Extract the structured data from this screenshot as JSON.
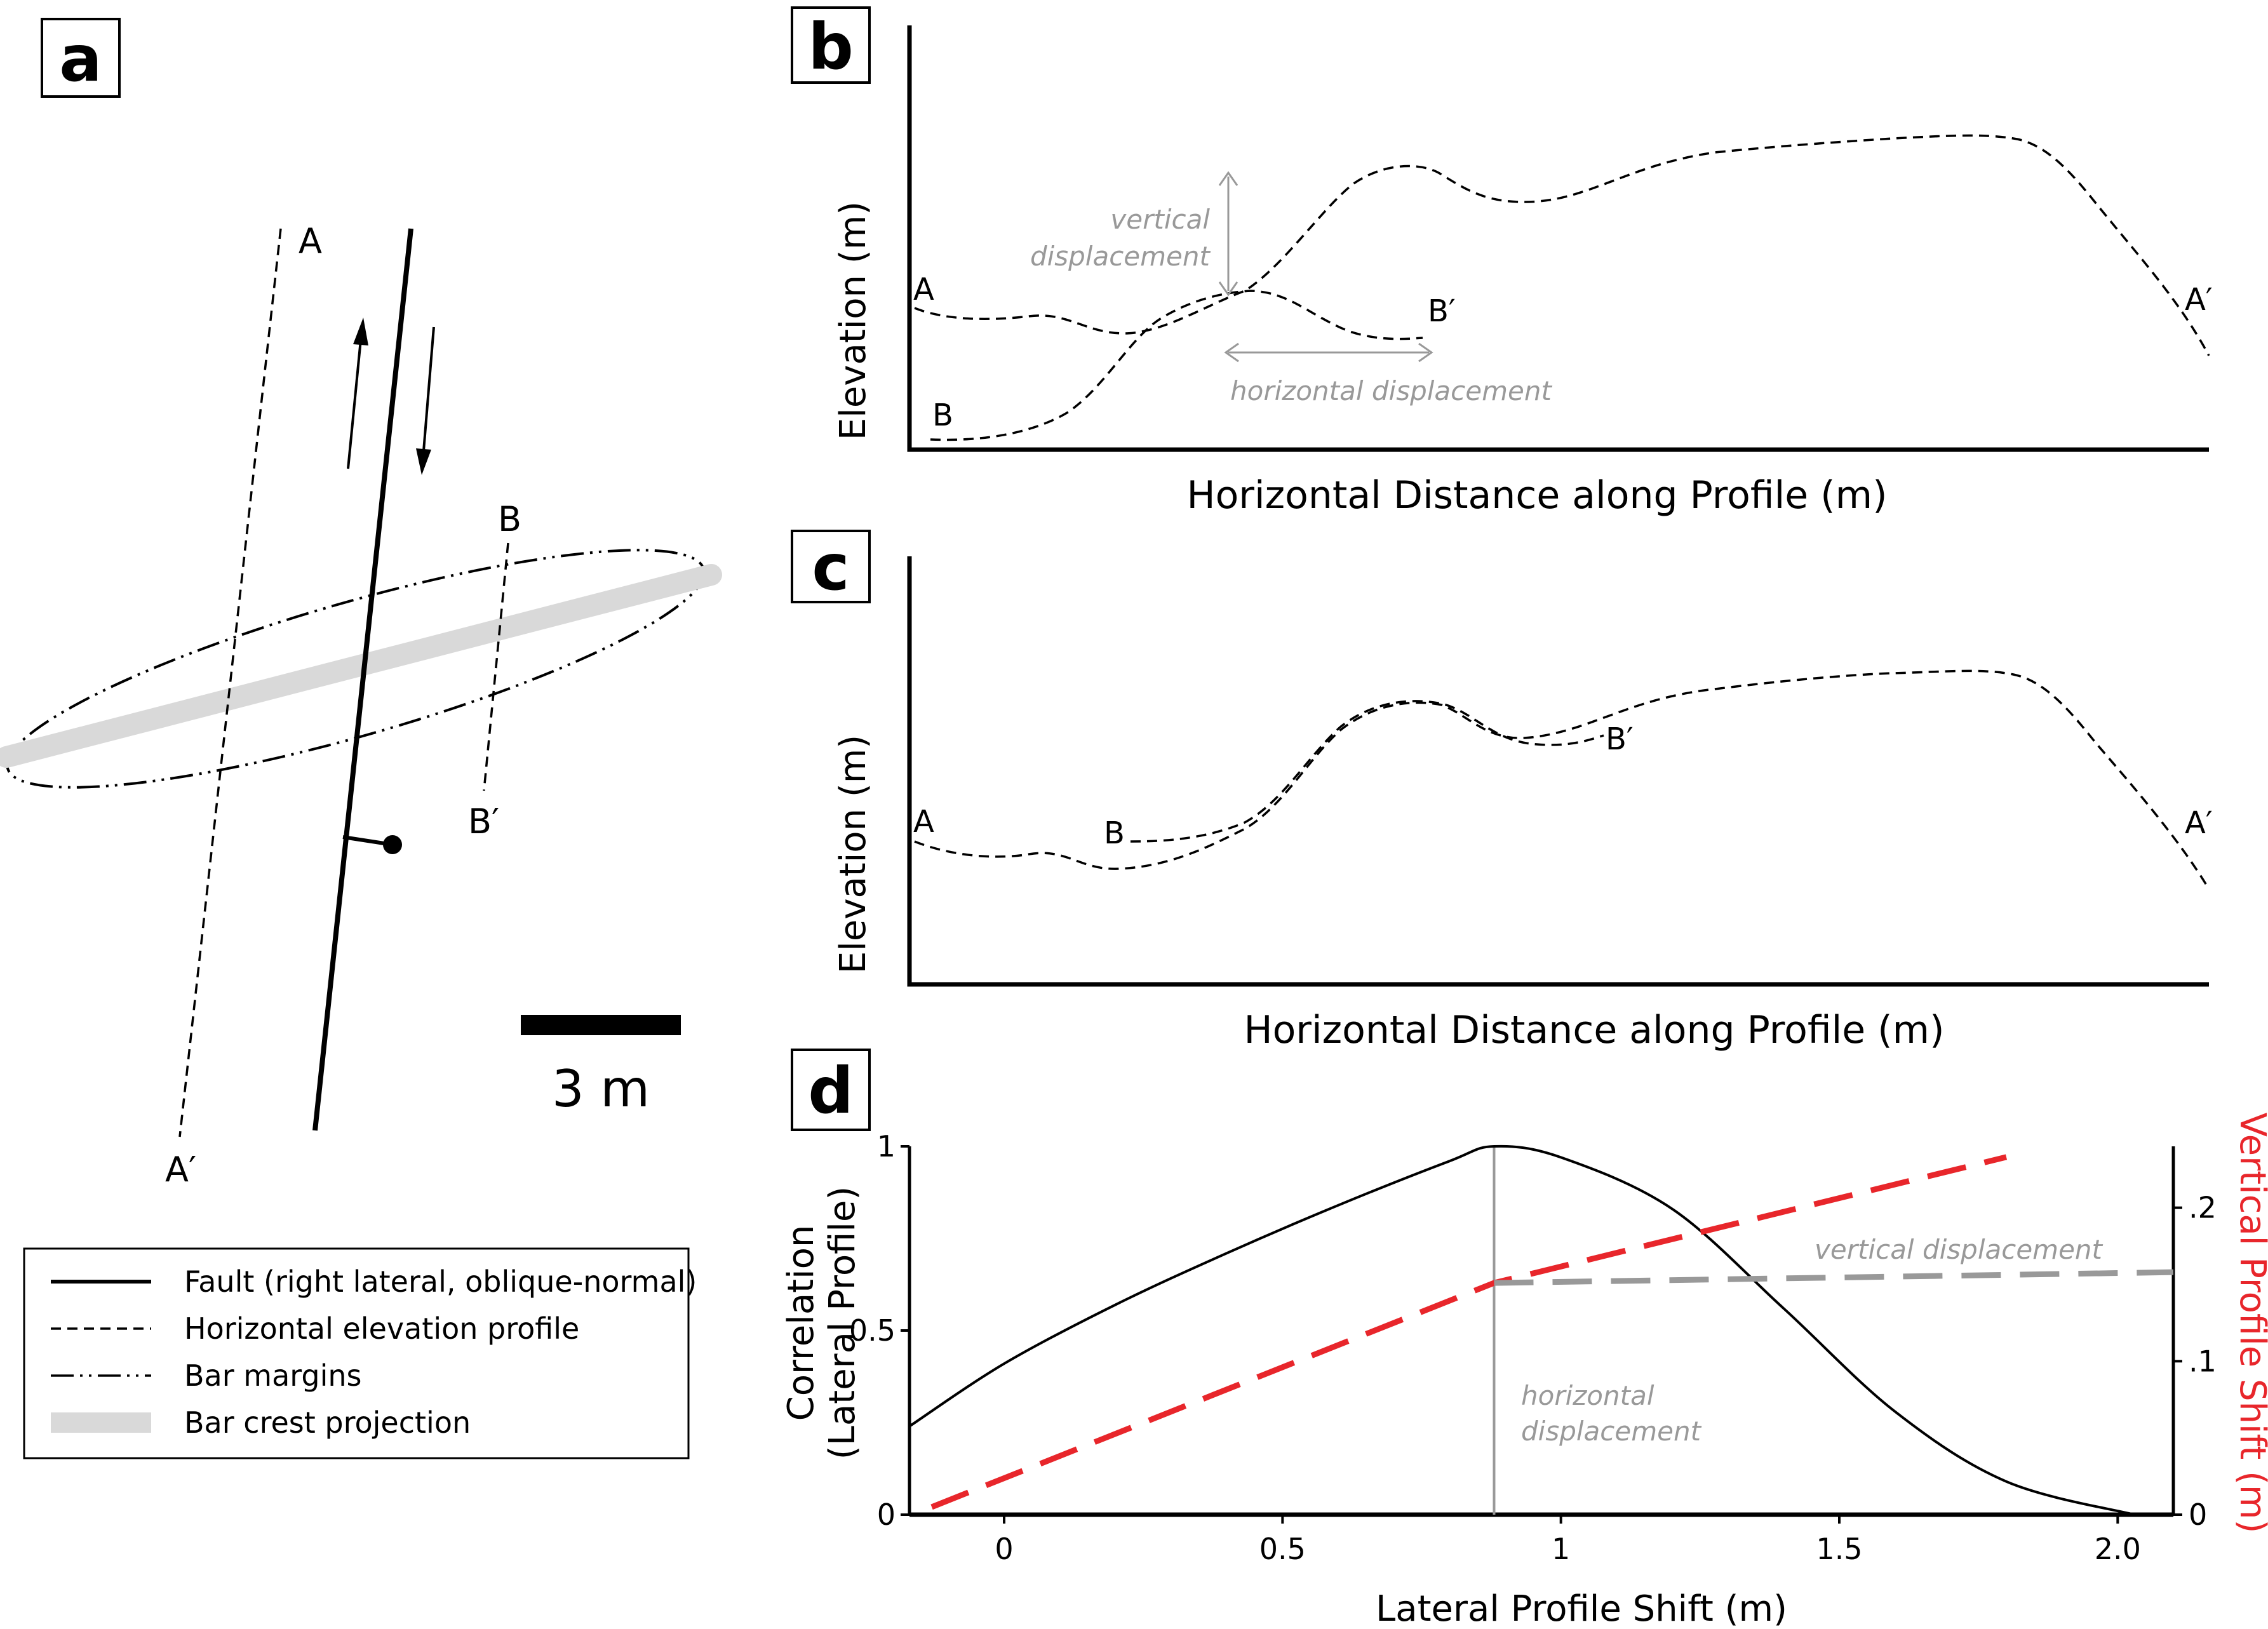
{
  "panels": {
    "a": {
      "letter": "a",
      "labels": {
        "A": "A",
        "A_prime": "A′",
        "B": "B",
        "B_prime": "B′"
      },
      "scale_bar_label": "3 m",
      "legend": [
        {
          "key": "fault",
          "label": "Fault (right lateral, oblique-normal)"
        },
        {
          "key": "profile",
          "label": "Horizontal elevation profile"
        },
        {
          "key": "margin",
          "label": "Bar margins"
        },
        {
          "key": "crest",
          "label": "Bar crest projection"
        }
      ]
    },
    "b": {
      "letter": "b",
      "ylabel": "Elevation (m)",
      "xlabel": "Horizontal Distance along Profile (m)",
      "labels": {
        "A": "A",
        "A_prime": "A′",
        "B": "B",
        "B_prime": "B′"
      },
      "annotations": {
        "vertical": [
          "vertical",
          "displacement"
        ],
        "horizontal": "horizontal displacement"
      }
    },
    "c": {
      "letter": "c",
      "ylabel": "Elevation (m)",
      "xlabel": "Horizontal Distance along Profile (m)",
      "labels": {
        "A": "A",
        "A_prime": "A′",
        "B": "B",
        "B_prime": "B′"
      }
    },
    "d": {
      "letter": "d",
      "ylabel_left": [
        "Correlation",
        "(Lateral Profile)"
      ],
      "ylabel_right": "Vertical Profile Shift (m)",
      "xlabel": "Lateral Profile Shift (m)",
      "x_ticks": [
        "0",
        "0.5",
        "1",
        "1.5",
        "2.0"
      ],
      "y_left_ticks": [
        "0",
        "0.5",
        "1"
      ],
      "y_right_ticks": [
        "0",
        ".1",
        ".2"
      ],
      "annotations": {
        "vertical": "vertical displacement",
        "horizontal": [
          "horizontal",
          "displacement"
        ]
      }
    }
  },
  "colors": {
    "red": "#e8262b",
    "gray": "#999999",
    "crest": "#d9d9d9"
  },
  "chart_data": {
    "type": "line",
    "x_range": [
      -0.17,
      2.1
    ],
    "series": [
      {
        "axis": "left",
        "style": "solid-black",
        "x": [
          -0.17,
          0,
          0.2,
          0.4,
          0.6,
          0.8,
          0.88,
          1.0,
          1.2,
          1.4,
          1.6,
          1.8,
          2.03
        ],
        "y": [
          0.24,
          0.41,
          0.57,
          0.71,
          0.84,
          0.96,
          1.0,
          0.97,
          0.83,
          0.56,
          0.28,
          0.09,
          0.0
        ]
      },
      {
        "axis": "right",
        "style": "dashed-red",
        "x": [
          -0.13,
          0.88,
          1.8
        ],
        "y": [
          0.005,
          0.151,
          0.233
        ]
      },
      {
        "axis": "right",
        "style": "dashed-gray",
        "x": [
          0.88,
          2.1
        ],
        "y": [
          0.151,
          0.158
        ]
      }
    ],
    "markers": {
      "horizontal_displacement_x": 0.88
    },
    "ylim_left": [
      0,
      1
    ],
    "ylim_right": [
      0,
      0.24
    ]
  }
}
